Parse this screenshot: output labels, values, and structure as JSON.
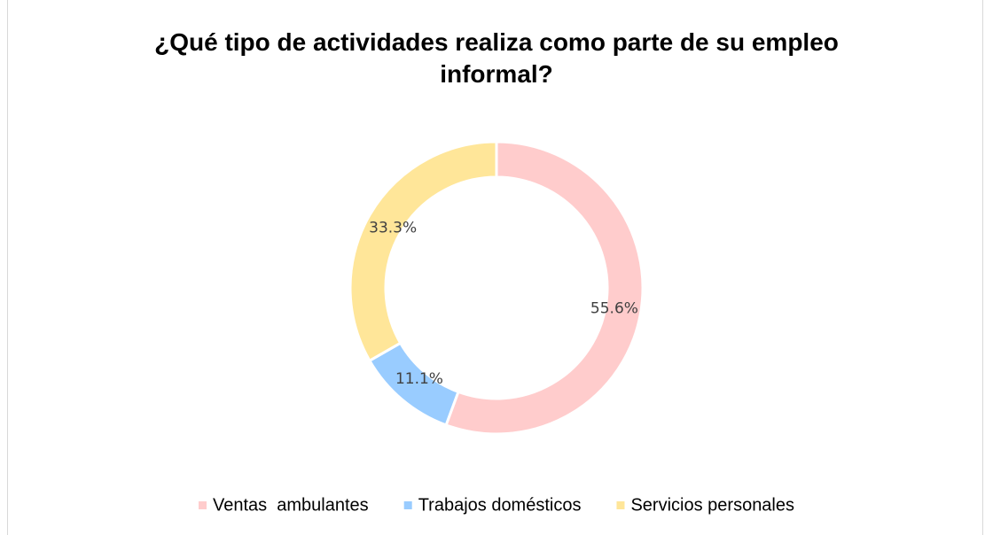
{
  "chart_data": {
    "type": "doughnut",
    "title": "¿Qué tipo de actividades realiza como parte de su empleo informal?",
    "categories": [
      "Ventas  ambulantes",
      "Trabajos domésticos",
      "Servicios personales"
    ],
    "values": [
      55.6,
      11.1,
      33.3
    ],
    "value_labels": [
      "55.6%",
      "11.1%",
      "33.3%"
    ],
    "colors": [
      "#ffcccc",
      "#99ccff",
      "#ffe699"
    ],
    "legend": "bottom"
  }
}
